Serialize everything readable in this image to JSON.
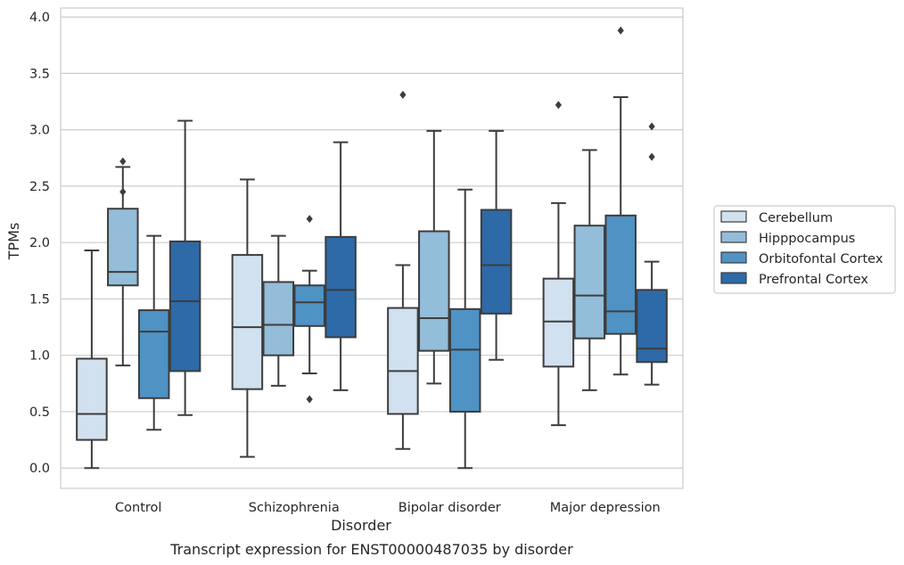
{
  "chart_data": {
    "type": "box",
    "caption": "Transcript expression for ENST00000487035 by disorder",
    "xlabel": "Disorder",
    "ylabel": "TPMs",
    "ylim": [
      -0.18,
      4.08
    ],
    "yticks": [
      0.0,
      0.5,
      1.0,
      1.5,
      2.0,
      2.5,
      3.0,
      3.5,
      4.0
    ],
    "ytick_labels": [
      "0.0",
      "0.5",
      "1.0",
      "1.5",
      "2.0",
      "2.5",
      "3.0",
      "3.5",
      "4.0"
    ],
    "grid": "horizontal",
    "legend_position": "right",
    "categories": [
      "Control",
      "Schizophrenia",
      "Bipolar disorder",
      "Major depression"
    ],
    "series": [
      {
        "name": "Cerebellum",
        "color": "#d1e1f0",
        "boxes": [
          {
            "whislo": 0.0,
            "q1": 0.25,
            "med": 0.48,
            "q3": 0.97,
            "whishi": 1.93,
            "fliers": []
          },
          {
            "whislo": 0.1,
            "q1": 0.7,
            "med": 1.25,
            "q3": 1.89,
            "whishi": 2.56,
            "fliers": []
          },
          {
            "whislo": 0.17,
            "q1": 0.48,
            "med": 0.86,
            "q3": 1.42,
            "whishi": 1.8,
            "fliers": [
              3.31
            ]
          },
          {
            "whislo": 0.38,
            "q1": 0.9,
            "med": 1.3,
            "q3": 1.68,
            "whishi": 2.35,
            "fliers": [
              3.22
            ]
          }
        ]
      },
      {
        "name": "Hipppocampus",
        "color": "#93bdd9",
        "boxes": [
          {
            "whislo": 0.91,
            "q1": 1.62,
            "med": 1.74,
            "q3": 2.3,
            "whishi": 2.67,
            "fliers": [
              2.45,
              2.72
            ]
          },
          {
            "whislo": 0.73,
            "q1": 1.0,
            "med": 1.27,
            "q3": 1.65,
            "whishi": 2.06,
            "fliers": []
          },
          {
            "whislo": 0.75,
            "q1": 1.04,
            "med": 1.33,
            "q3": 2.1,
            "whishi": 2.99,
            "fliers": []
          },
          {
            "whislo": 0.69,
            "q1": 1.15,
            "med": 1.53,
            "q3": 2.15,
            "whishi": 2.82,
            "fliers": []
          }
        ]
      },
      {
        "name": "Orbitofontal Cortex",
        "color": "#4f92c4",
        "boxes": [
          {
            "whislo": 0.34,
            "q1": 0.62,
            "med": 1.21,
            "q3": 1.4,
            "whishi": 2.06,
            "fliers": []
          },
          {
            "whislo": 0.84,
            "q1": 1.26,
            "med": 1.47,
            "q3": 1.62,
            "whishi": 1.75,
            "fliers": [
              0.61,
              2.21
            ]
          },
          {
            "whislo": 0.0,
            "q1": 0.5,
            "med": 1.05,
            "q3": 1.41,
            "whishi": 2.47,
            "fliers": []
          },
          {
            "whislo": 0.83,
            "q1": 1.19,
            "med": 1.39,
            "q3": 2.24,
            "whishi": 3.29,
            "fliers": [
              3.88
            ]
          }
        ]
      },
      {
        "name": "Prefrontal Cortex",
        "color": "#2d6aa7",
        "boxes": [
          {
            "whislo": 0.47,
            "q1": 0.86,
            "med": 1.48,
            "q3": 2.01,
            "whishi": 3.08,
            "fliers": []
          },
          {
            "whislo": 0.69,
            "q1": 1.16,
            "med": 1.58,
            "q3": 2.05,
            "whishi": 2.89,
            "fliers": []
          },
          {
            "whislo": 0.96,
            "q1": 1.37,
            "med": 1.8,
            "q3": 2.29,
            "whishi": 2.99,
            "fliers": []
          },
          {
            "whislo": 0.74,
            "q1": 0.94,
            "med": 1.06,
            "q3": 1.58,
            "whishi": 1.83,
            "fliers": [
              2.76,
              3.03
            ]
          }
        ]
      }
    ]
  }
}
